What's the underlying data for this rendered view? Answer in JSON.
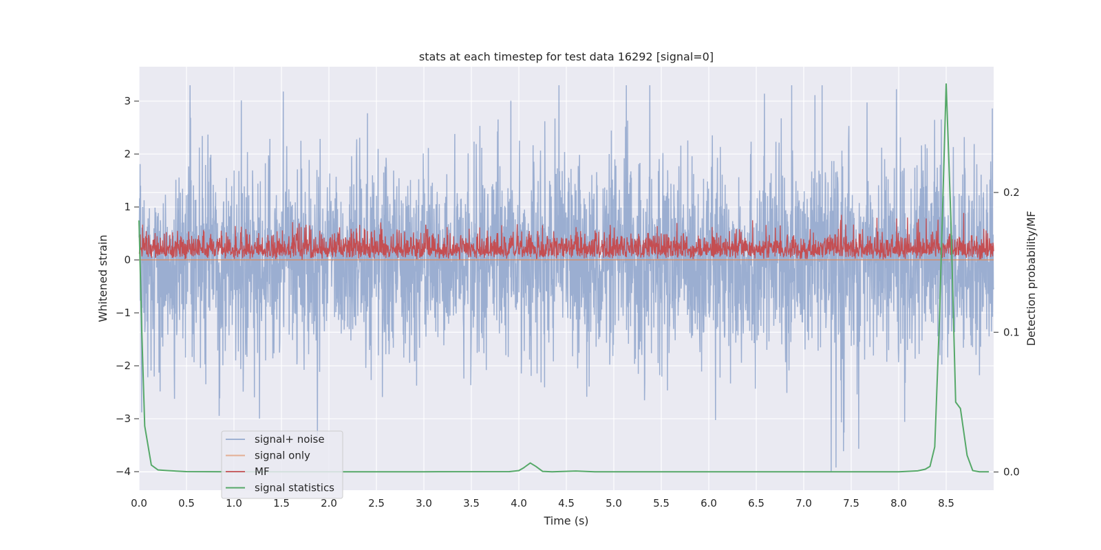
{
  "chart_data": {
    "type": "line",
    "title": "stats at each timestep for test data 16292 [signal=0]",
    "xlabel": "Time (s)",
    "ylabel": "Whitened strain",
    "y2label": "Detection probability/MF",
    "xlim": [
      0.0,
      9.0
    ],
    "ylim": [
      -4.35,
      3.65
    ],
    "y2lim": [
      -0.013,
      0.29
    ],
    "xticks": [
      "0.0",
      "0.5",
      "1.0",
      "1.5",
      "2.0",
      "2.5",
      "3.0",
      "3.5",
      "4.0",
      "4.5",
      "5.0",
      "5.5",
      "6.0",
      "6.5",
      "7.0",
      "7.5",
      "8.0",
      "8.5"
    ],
    "yticks": [
      "3",
      "2",
      "1",
      "0",
      "−1",
      "−2",
      "−3",
      "−4"
    ],
    "y2ticks": [
      "0.2",
      "0.1",
      "0.0"
    ],
    "grid": true,
    "legend_position": "lower-left",
    "series": [
      {
        "name": "signal+ noise",
        "axis": "left",
        "color": "#4c72b0",
        "description_kind": "noise",
        "amplitude_range": [
          -4.0,
          3.3
        ]
      },
      {
        "name": "signal only",
        "axis": "left",
        "color": "#dd8452",
        "constant_value": 0.0
      },
      {
        "name": "MF",
        "axis": "left",
        "color": "#c44e52",
        "value_range": [
          0.0,
          1.0
        ]
      },
      {
        "name": "signal statistics",
        "axis": "right",
        "color": "#55a868",
        "x": [
          0.0,
          0.03,
          0.06,
          0.13,
          0.2,
          0.3,
          0.5,
          1.0,
          2.0,
          3.0,
          3.9,
          4.0,
          4.05,
          4.12,
          4.18,
          4.25,
          4.35,
          4.6,
          4.8,
          5.0,
          6.0,
          7.0,
          8.0,
          8.2,
          8.28,
          8.33,
          8.38,
          8.43,
          8.5,
          8.55,
          8.6,
          8.65,
          8.72,
          8.78,
          8.85,
          8.95
        ],
        "values": [
          0.18,
          0.1,
          0.033,
          0.005,
          0.0015,
          0.001,
          0.0003,
          0.0002,
          0.0002,
          0.0002,
          0.0003,
          0.001,
          0.003,
          0.0065,
          0.004,
          0.0005,
          0.0002,
          0.0007,
          0.0002,
          0.0002,
          0.0002,
          0.0002,
          0.0002,
          0.0008,
          0.002,
          0.004,
          0.018,
          0.11,
          0.278,
          0.18,
          0.05,
          0.0455,
          0.012,
          0.001,
          0.0002,
          0.0002
        ]
      }
    ]
  }
}
